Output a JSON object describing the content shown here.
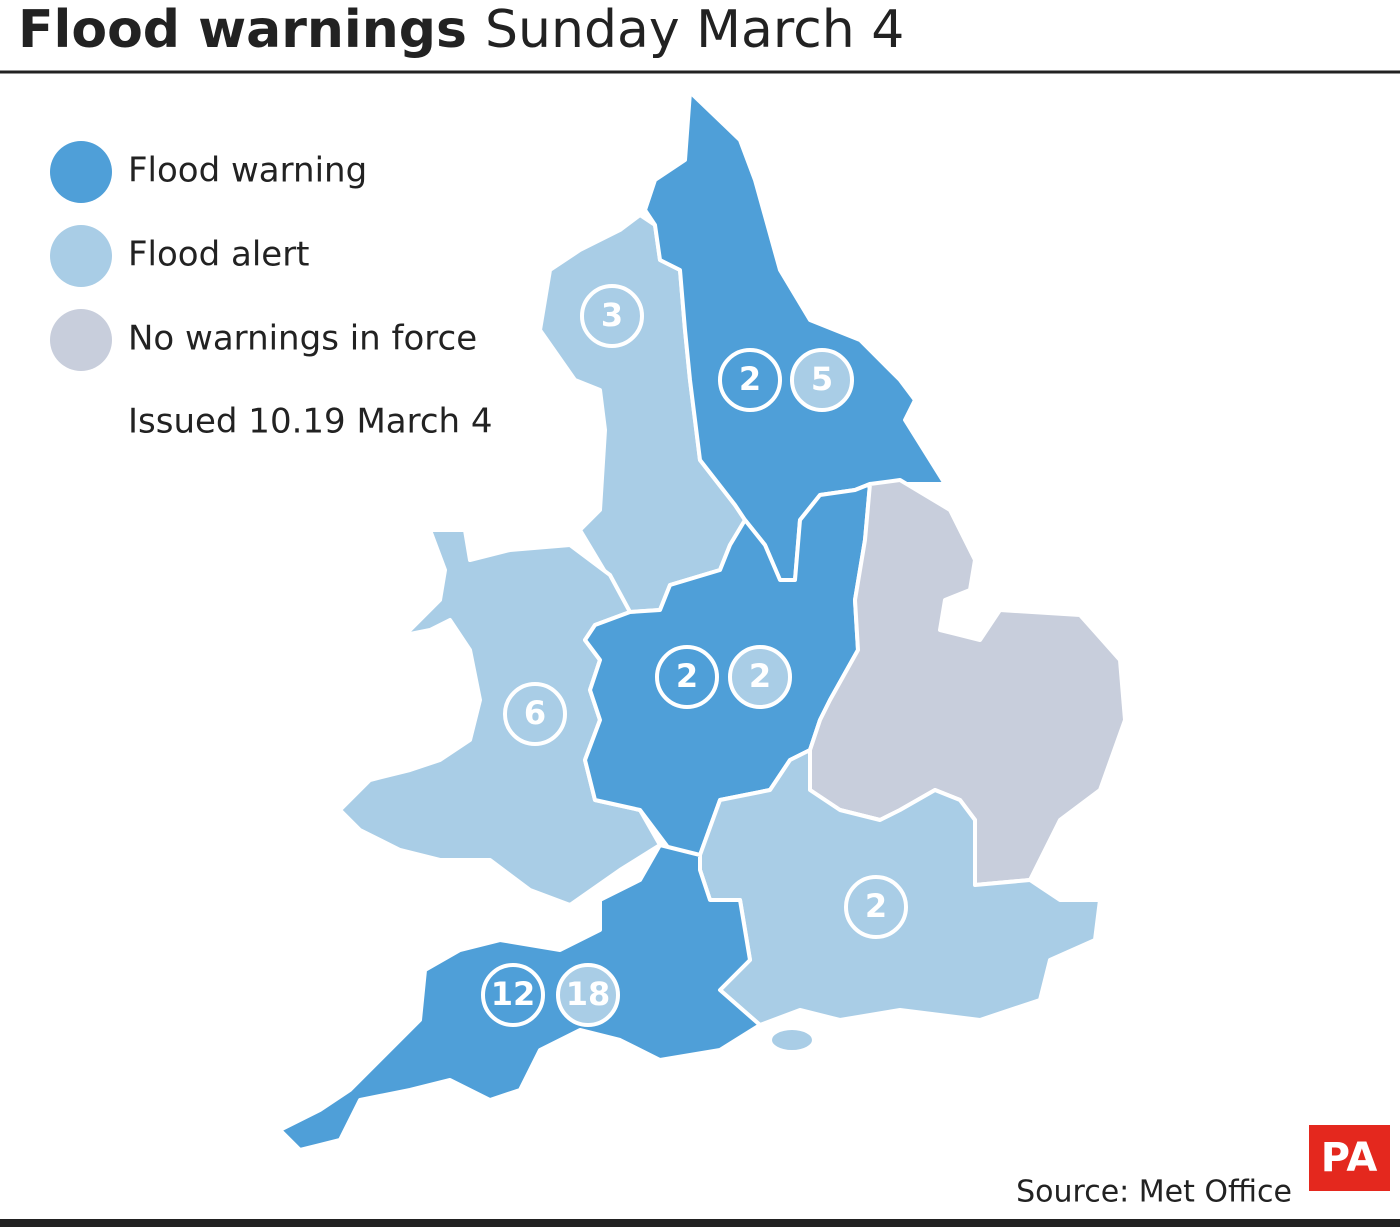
{
  "header": {
    "title": "Flood warnings",
    "subtitle": "Sunday March 4"
  },
  "legend": {
    "items": [
      {
        "label": "Flood warning",
        "color": "#4f9fd8"
      },
      {
        "label": "Flood alert",
        "color": "#a9cde6"
      },
      {
        "label": "No warnings in force",
        "color": "#c8cedc"
      }
    ],
    "note": "Issued 10.19 March 4"
  },
  "regions": [
    {
      "color": "#a9cde6",
      "badges": [
        {
          "value": 3,
          "color": "#a9cde6"
        }
      ]
    },
    {
      "color": "#4f9fd8",
      "badges": [
        {
          "value": 2,
          "color": "#4f9fd8"
        },
        {
          "value": 5,
          "color": "#a9cde6"
        }
      ]
    },
    {
      "color": "#a9cde6",
      "badges": [
        {
          "value": 6,
          "color": "#a9cde6"
        }
      ]
    },
    {
      "color": "#4f9fd8",
      "badges": [
        {
          "value": 2,
          "color": "#4f9fd8"
        },
        {
          "value": 2,
          "color": "#a9cde6"
        }
      ]
    },
    {
      "color": "#c8cedc",
      "badges": []
    },
    {
      "color": "#a9cde6",
      "badges": [
        {
          "value": 2,
          "color": "#a9cde6"
        }
      ]
    },
    {
      "color": "#4f9fd8",
      "badges": [
        {
          "value": 12,
          "color": "#4f9fd8"
        },
        {
          "value": 18,
          "color": "#a9cde6"
        }
      ]
    }
  ],
  "footer": {
    "source": "Source: Met Office",
    "logo": "PA"
  }
}
